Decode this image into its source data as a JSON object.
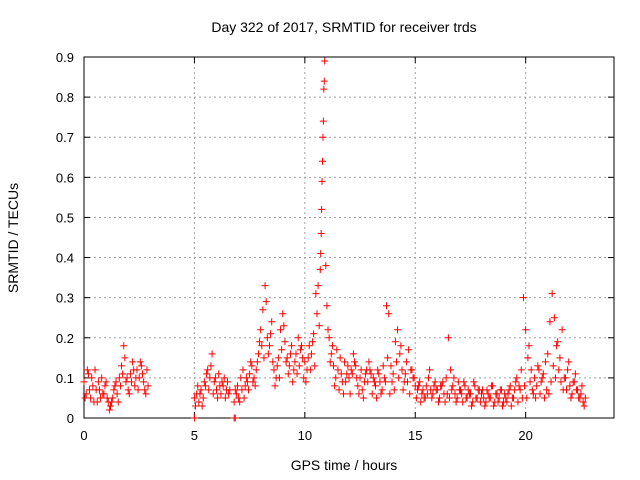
{
  "chart_data": {
    "type": "scatter",
    "title": "Day 322 of 2017, SRMTID for receiver trds",
    "xlabel": "GPS time / hours",
    "ylabel": "SRMTID / TECUs",
    "xlim": [
      0,
      24
    ],
    "ylim": [
      0,
      0.9
    ],
    "xticks": [
      0,
      5,
      10,
      15,
      20
    ],
    "xtick_labels": [
      "0",
      "5",
      "10",
      "15",
      "20"
    ],
    "yticks": [
      0,
      0.1,
      0.2,
      0.3,
      0.4,
      0.5,
      0.6,
      0.7,
      0.8,
      0.9
    ],
    "ytick_labels": [
      "0",
      "0.1",
      "0.2",
      "0.3",
      "0.4",
      "0.5",
      "0.6",
      "0.7",
      "0.8",
      "0.9"
    ],
    "grid": true,
    "marker": "+",
    "series": [
      {
        "name": "trds",
        "color": "#ff0000",
        "x": [
          0.0,
          0.1,
          0.2,
          0.3,
          0.4,
          0.5,
          0.6,
          0.7,
          0.8,
          0.9,
          1.0,
          1.1,
          1.2,
          1.3,
          1.4,
          1.5,
          1.6,
          1.7,
          1.8,
          1.9,
          2.0,
          2.1,
          2.2,
          2.3,
          2.4,
          2.5,
          2.6,
          2.7,
          2.8,
          2.9,
          5.0,
          5.1,
          5.2,
          5.3,
          5.4,
          5.5,
          5.6,
          5.7,
          5.8,
          5.9,
          6.0,
          6.1,
          6.2,
          6.3,
          6.4,
          6.5,
          6.6,
          6.8,
          6.9,
          7.0,
          7.1,
          7.2,
          7.3,
          7.4,
          7.5,
          7.6,
          7.7,
          7.8,
          7.9,
          8.0,
          8.1,
          8.2,
          8.3,
          8.4,
          8.5,
          8.6,
          8.7,
          8.8,
          8.9,
          9.0,
          9.1,
          9.2,
          9.3,
          9.4,
          9.5,
          9.6,
          9.7,
          9.8,
          9.9,
          10.0,
          10.1,
          10.2,
          10.3,
          10.4,
          10.5,
          10.6,
          10.7,
          10.72,
          10.74,
          10.76,
          10.78,
          10.8,
          10.82,
          10.84,
          10.86,
          10.88,
          10.9,
          11.0,
          11.1,
          11.2,
          11.3,
          11.4,
          11.5,
          11.6,
          11.7,
          11.8,
          11.9,
          12.0,
          12.1,
          12.2,
          12.3,
          12.4,
          12.5,
          12.6,
          12.7,
          12.8,
          12.9,
          13.0,
          13.1,
          13.2,
          13.3,
          13.4,
          13.5,
          13.6,
          13.7,
          13.8,
          13.9,
          14.0,
          14.1,
          14.2,
          14.3,
          14.4,
          14.5,
          14.6,
          14.7,
          14.8,
          14.9,
          15.0,
          15.1,
          15.2,
          15.3,
          15.4,
          15.5,
          15.6,
          15.7,
          15.8,
          15.9,
          16.0,
          16.1,
          16.2,
          16.3,
          16.4,
          16.5,
          16.6,
          16.7,
          16.8,
          16.9,
          17.0,
          17.1,
          17.2,
          17.3,
          17.4,
          17.5,
          17.6,
          17.7,
          17.8,
          17.9,
          18.0,
          18.1,
          18.2,
          18.3,
          18.4,
          18.5,
          18.6,
          18.7,
          18.8,
          18.9,
          19.0,
          19.1,
          19.2,
          19.3,
          19.4,
          19.5,
          19.6,
          19.7,
          19.8,
          19.9,
          20.0,
          20.1,
          20.2,
          20.3,
          20.4,
          20.5,
          20.6,
          20.7,
          20.8,
          20.9,
          21.0,
          21.1,
          21.2,
          21.3,
          21.4,
          21.5,
          21.6,
          21.7,
          21.8,
          21.9,
          22.0,
          22.1,
          22.2,
          22.3,
          22.4,
          22.5,
          22.6,
          22.7,
          0.05,
          0.15,
          0.25,
          0.35,
          0.45,
          0.55,
          0.65,
          0.75,
          0.85,
          0.95,
          1.05,
          1.15,
          1.25,
          1.35,
          1.45,
          1.55,
          1.65,
          1.75,
          1.85,
          1.95,
          2.05,
          2.15,
          2.25,
          2.35,
          2.45,
          2.55,
          2.65,
          2.75,
          2.85,
          5.05,
          5.15,
          5.25,
          5.35,
          5.45,
          5.55,
          5.65,
          5.75,
          5.85,
          5.95,
          6.05,
          6.15,
          6.25,
          6.35,
          6.45,
          6.55,
          6.85,
          6.95,
          7.05,
          7.15,
          7.25,
          7.35,
          7.45,
          7.55,
          7.65,
          7.75,
          7.85,
          7.95,
          8.05,
          8.15,
          8.25,
          8.35,
          8.45,
          8.55,
          8.65,
          8.75,
          8.85,
          8.95,
          9.05,
          9.15,
          9.25,
          9.35,
          9.45,
          9.55,
          9.65,
          9.75,
          9.85,
          9.95,
          10.05,
          10.15,
          10.25,
          10.35,
          10.45,
          10.55,
          10.65,
          10.95,
          11.05,
          11.15,
          11.25,
          11.35,
          11.45,
          11.55,
          11.65,
          11.75,
          11.85,
          11.95,
          12.05,
          12.15,
          12.25,
          12.35,
          12.45,
          12.55,
          12.65,
          12.75,
          12.85,
          12.95,
          13.05,
          13.15,
          13.25,
          13.35,
          13.45,
          13.55,
          13.65,
          13.75,
          13.85,
          13.95,
          14.05,
          14.15,
          14.25,
          14.35,
          14.45,
          14.55,
          14.65,
          14.75,
          14.85,
          14.95,
          15.05,
          15.15,
          15.25,
          15.35,
          15.45,
          15.55,
          15.65,
          15.75,
          15.85,
          15.95,
          16.05,
          16.15,
          16.25,
          16.35,
          16.45,
          16.55,
          16.65,
          16.75,
          16.85,
          16.95,
          17.05,
          17.15,
          17.25,
          17.35,
          17.45,
          17.55,
          17.65,
          17.75,
          17.85,
          17.95,
          18.05,
          18.15,
          18.25,
          18.35,
          18.45,
          18.55,
          18.65,
          18.75,
          18.85,
          18.95,
          19.05,
          19.15,
          19.25,
          19.35,
          19.45,
          19.55,
          19.65,
          19.75,
          19.85,
          19.95,
          20.05,
          20.15,
          20.25,
          20.35,
          20.45,
          20.55,
          20.65,
          20.75,
          20.85,
          20.95,
          21.05,
          21.15,
          21.25,
          21.35,
          21.45,
          21.55,
          21.65,
          21.75,
          21.85,
          21.95,
          22.05,
          22.15,
          22.25,
          22.35,
          22.45,
          22.55,
          22.65,
          5.0,
          6.8,
          6.85
        ],
        "y": [
          0.09,
          0.06,
          0.11,
          0.05,
          0.08,
          0.12,
          0.04,
          0.07,
          0.1,
          0.06,
          0.09,
          0.04,
          0.03,
          0.05,
          0.08,
          0.06,
          0.1,
          0.13,
          0.18,
          0.09,
          0.07,
          0.11,
          0.14,
          0.08,
          0.12,
          0.1,
          0.13,
          0.09,
          0.06,
          0.08,
          0.05,
          0.06,
          0.04,
          0.07,
          0.05,
          0.08,
          0.12,
          0.1,
          0.16,
          0.09,
          0.07,
          0.11,
          0.06,
          0.08,
          0.05,
          0.09,
          0.07,
          0.04,
          0.06,
          0.05,
          0.1,
          0.12,
          0.08,
          0.09,
          0.11,
          0.13,
          0.1,
          0.12,
          0.16,
          0.22,
          0.27,
          0.33,
          0.2,
          0.18,
          0.24,
          0.12,
          0.1,
          0.15,
          0.22,
          0.26,
          0.19,
          0.15,
          0.13,
          0.18,
          0.12,
          0.16,
          0.2,
          0.17,
          0.15,
          0.14,
          0.12,
          0.18,
          0.16,
          0.21,
          0.31,
          0.33,
          0.37,
          0.41,
          0.46,
          0.52,
          0.59,
          0.64,
          0.7,
          0.74,
          0.82,
          0.84,
          0.89,
          0.28,
          0.2,
          0.16,
          0.13,
          0.1,
          0.12,
          0.15,
          0.09,
          0.14,
          0.11,
          0.1,
          0.12,
          0.16,
          0.13,
          0.08,
          0.1,
          0.07,
          0.09,
          0.12,
          0.14,
          0.11,
          0.1,
          0.08,
          0.12,
          0.09,
          0.07,
          0.1,
          0.28,
          0.26,
          0.13,
          0.11,
          0.19,
          0.22,
          0.16,
          0.12,
          0.09,
          0.14,
          0.17,
          0.12,
          0.1,
          0.08,
          0.07,
          0.09,
          0.06,
          0.05,
          0.08,
          0.1,
          0.07,
          0.06,
          0.09,
          0.07,
          0.05,
          0.08,
          0.06,
          0.1,
          0.2,
          0.12,
          0.08,
          0.06,
          0.05,
          0.07,
          0.06,
          0.09,
          0.05,
          0.07,
          0.06,
          0.04,
          0.08,
          0.05,
          0.07,
          0.06,
          0.05,
          0.04,
          0.06,
          0.05,
          0.08,
          0.04,
          0.06,
          0.05,
          0.07,
          0.04,
          0.05,
          0.06,
          0.08,
          0.05,
          0.07,
          0.1,
          0.08,
          0.12,
          0.3,
          0.22,
          0.15,
          0.09,
          0.07,
          0.1,
          0.08,
          0.12,
          0.09,
          0.11,
          0.14,
          0.16,
          0.24,
          0.31,
          0.25,
          0.18,
          0.12,
          0.09,
          0.07,
          0.1,
          0.12,
          0.08,
          0.06,
          0.09,
          0.07,
          0.05,
          0.06,
          0.04,
          0.05,
          0.05,
          0.12,
          0.07,
          0.1,
          0.04,
          0.07,
          0.09,
          0.05,
          0.06,
          0.08,
          0.05,
          0.02,
          0.04,
          0.07,
          0.09,
          0.04,
          0.08,
          0.11,
          0.15,
          0.1,
          0.06,
          0.09,
          0.12,
          0.1,
          0.07,
          0.14,
          0.11,
          0.07,
          0.12,
          0.03,
          0.08,
          0.06,
          0.03,
          0.09,
          0.11,
          0.07,
          0.13,
          0.06,
          0.1,
          0.05,
          0.08,
          0.09,
          0.1,
          0.07,
          0.06,
          0.07,
          0.08,
          0.04,
          0.07,
          0.05,
          0.1,
          0.07,
          0.14,
          0.09,
          0.08,
          0.14,
          0.19,
          0.18,
          0.15,
          0.29,
          0.16,
          0.21,
          0.14,
          0.08,
          0.13,
          0.1,
          0.17,
          0.23,
          0.14,
          0.11,
          0.16,
          0.09,
          0.14,
          0.11,
          0.13,
          0.18,
          0.1,
          0.09,
          0.15,
          0.12,
          0.19,
          0.13,
          0.26,
          0.23,
          0.38,
          0.22,
          0.14,
          0.18,
          0.08,
          0.17,
          0.07,
          0.11,
          0.06,
          0.09,
          0.13,
          0.06,
          0.11,
          0.14,
          0.1,
          0.06,
          0.12,
          0.05,
          0.11,
          0.09,
          0.12,
          0.06,
          0.09,
          0.05,
          0.11,
          0.06,
          0.13,
          0.09,
          0.15,
          0.06,
          0.09,
          0.07,
          0.14,
          0.1,
          0.18,
          0.07,
          0.11,
          0.09,
          0.06,
          0.12,
          0.1,
          0.05,
          0.08,
          0.04,
          0.07,
          0.05,
          0.06,
          0.12,
          0.05,
          0.08,
          0.07,
          0.04,
          0.08,
          0.09,
          0.04,
          0.06,
          0.05,
          0.07,
          0.1,
          0.04,
          0.09,
          0.07,
          0.04,
          0.08,
          0.05,
          0.06,
          0.03,
          0.09,
          0.05,
          0.07,
          0.04,
          0.07,
          0.03,
          0.07,
          0.05,
          0.08,
          0.03,
          0.06,
          0.04,
          0.07,
          0.03,
          0.06,
          0.04,
          0.07,
          0.03,
          0.05,
          0.09,
          0.04,
          0.07,
          0.05,
          0.08,
          0.05,
          0.18,
          0.12,
          0.06,
          0.05,
          0.13,
          0.06,
          0.1,
          0.05,
          0.07,
          0.06,
          0.09,
          0.13,
          0.1,
          0.19,
          0.15,
          0.22,
          0.1,
          0.07,
          0.14,
          0.05,
          0.09,
          0.11,
          0.07,
          0.05,
          0.08,
          0.03,
          0.0,
          0.0,
          0.0
        ]
      }
    ]
  }
}
